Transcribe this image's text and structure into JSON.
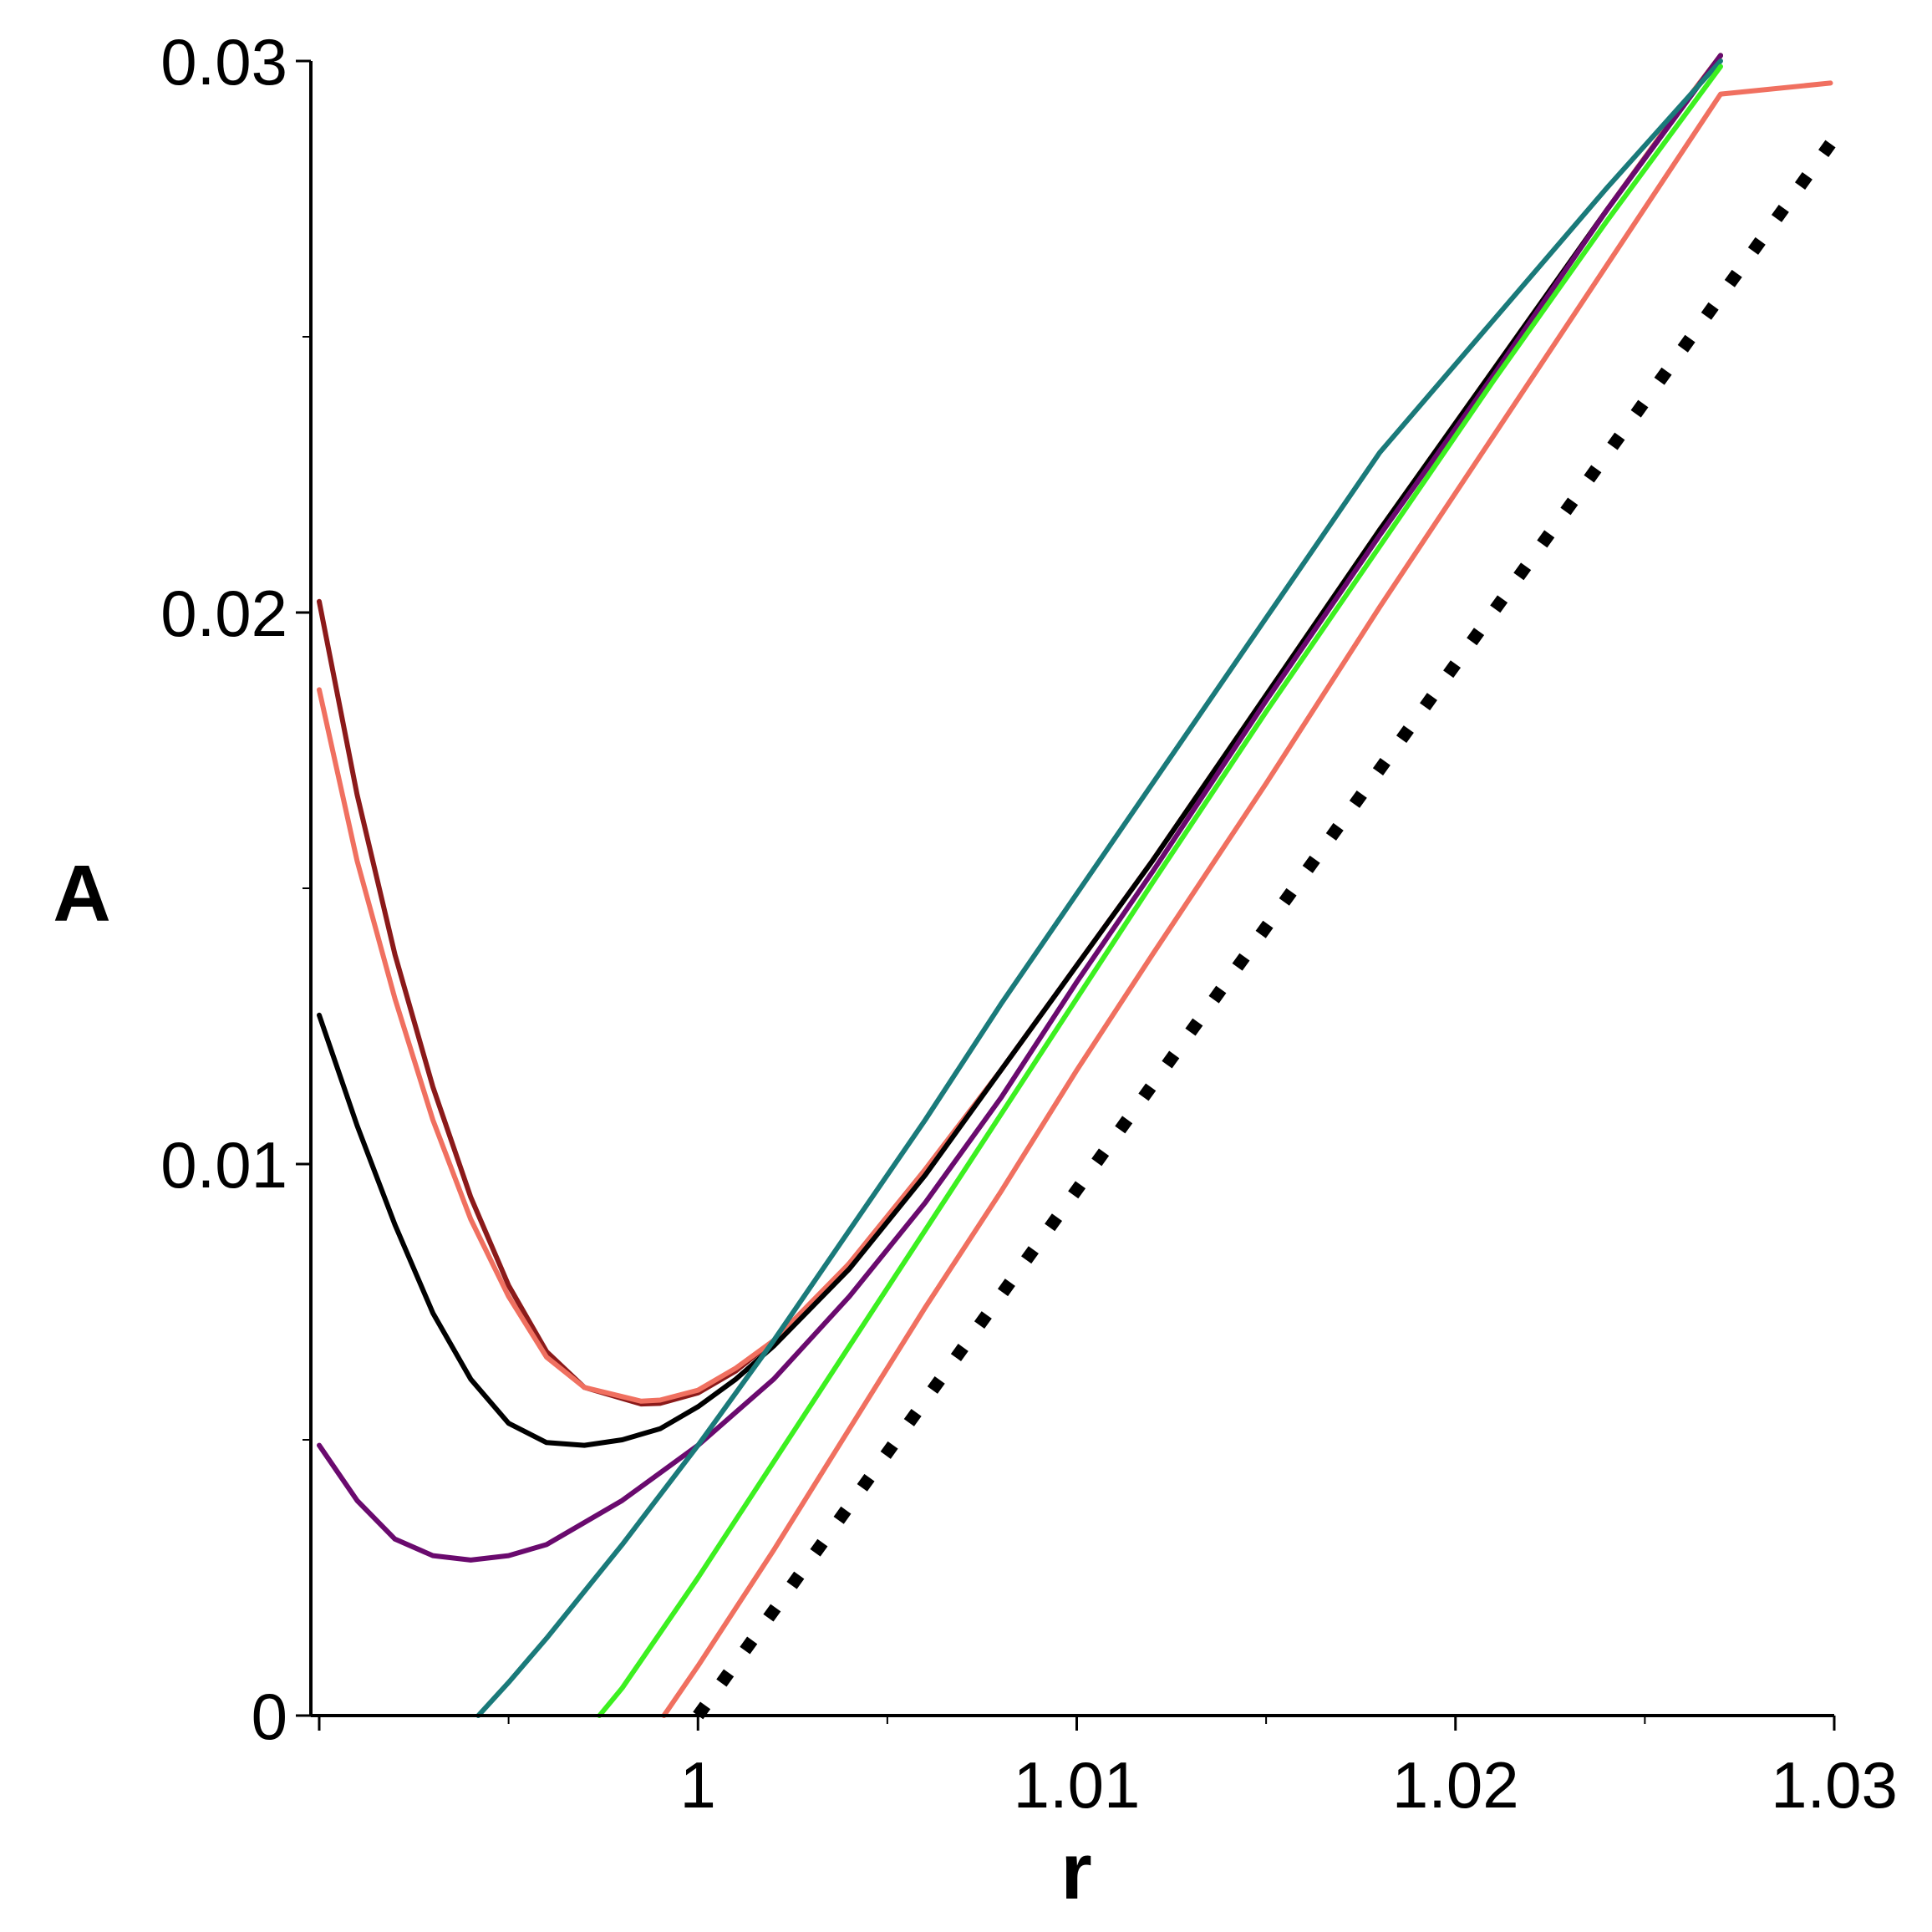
{
  "chart_data": {
    "type": "line",
    "xlabel": "r",
    "ylabel": "A",
    "xlim": [
      0.99,
      1.03
    ],
    "ylim": [
      0,
      0.03
    ],
    "x_ticks": [
      {
        "value": 1.0,
        "label": "1"
      },
      {
        "value": 1.01,
        "label": "1.01"
      },
      {
        "value": 1.02,
        "label": "1.02"
      },
      {
        "value": 1.03,
        "label": "1.03"
      }
    ],
    "y_ticks": [
      {
        "value": 0,
        "label": "0"
      },
      {
        "value": 0.01,
        "label": "0.01"
      },
      {
        "value": 0.02,
        "label": "0.02"
      },
      {
        "value": 0.03,
        "label": "0.03"
      }
    ],
    "x_minor_ticks": [
      0.995,
      1.005,
      1.015,
      1.025
    ],
    "y_minor_ticks": [
      0.005,
      0.015,
      0.025
    ],
    "grid": false,
    "legend": "none",
    "series": [
      {
        "color": "#8b1a1a",
        "points": [
          [
            0.99,
            0.0202
          ],
          [
            0.991,
            0.0167
          ],
          [
            0.992,
            0.0138
          ],
          [
            0.993,
            0.0114
          ],
          [
            0.994,
            0.0094
          ],
          [
            0.995,
            0.0078
          ],
          [
            0.996,
            0.0066
          ],
          [
            0.997,
            0.00595
          ],
          [
            0.9985,
            0.00565
          ],
          [
            0.999,
            0.00566
          ],
          [
            1.0,
            0.00585
          ],
          [
            1.001,
            0.00625
          ],
          [
            1.002,
            0.0068
          ],
          [
            1.003,
            0.00745
          ],
          [
            1.004,
            0.0082
          ],
          [
            1.006,
            0.0099
          ],
          [
            1.008,
            0.0117
          ],
          [
            1.01,
            0.0136
          ],
          [
            1.012,
            0.0155
          ],
          [
            1.015,
            0.0185
          ],
          [
            1.018,
            0.0215
          ],
          [
            1.021,
            0.0244
          ],
          [
            1.024,
            0.0273
          ],
          [
            1.026,
            0.0292
          ],
          [
            1.027,
            0.0301
          ]
        ]
      },
      {
        "color": "#f07060",
        "points": [
          [
            0.99,
            0.0186
          ],
          [
            0.991,
            0.0155
          ],
          [
            0.992,
            0.013
          ],
          [
            0.993,
            0.0108
          ],
          [
            0.994,
            0.009
          ],
          [
            0.995,
            0.0076
          ],
          [
            0.996,
            0.0065
          ],
          [
            0.997,
            0.00595
          ],
          [
            0.9985,
            0.0057
          ],
          [
            0.999,
            0.00572
          ],
          [
            1.0,
            0.0059
          ],
          [
            1.001,
            0.0063
          ],
          [
            1.002,
            0.0068
          ],
          [
            1.003,
            0.0075
          ],
          [
            1.004,
            0.0082
          ],
          [
            1.006,
            0.0099
          ],
          [
            1.008,
            0.0117
          ],
          [
            1.01,
            0.0136
          ],
          [
            1.012,
            0.0155
          ],
          [
            1.015,
            0.0185
          ],
          [
            1.018,
            0.0215
          ],
          [
            1.021,
            0.0244
          ],
          [
            1.024,
            0.0273
          ],
          [
            1.026,
            0.0292
          ],
          [
            1.027,
            0.0301
          ]
        ]
      },
      {
        "color": "#000000",
        "points": [
          [
            0.99,
            0.0127
          ],
          [
            0.991,
            0.0107
          ],
          [
            0.992,
            0.0089
          ],
          [
            0.993,
            0.0073
          ],
          [
            0.994,
            0.0061
          ],
          [
            0.995,
            0.0053
          ],
          [
            0.996,
            0.00495
          ],
          [
            0.997,
            0.0049
          ],
          [
            0.998,
            0.005
          ],
          [
            0.999,
            0.0052
          ],
          [
            1.0,
            0.0056
          ],
          [
            1.001,
            0.0061
          ],
          [
            1.002,
            0.0067
          ],
          [
            1.004,
            0.0081
          ],
          [
            1.006,
            0.0098
          ],
          [
            1.008,
            0.0117
          ],
          [
            1.01,
            0.0136
          ],
          [
            1.012,
            0.0155
          ],
          [
            1.015,
            0.0185
          ],
          [
            1.018,
            0.0215
          ],
          [
            1.021,
            0.0244
          ],
          [
            1.024,
            0.0273
          ],
          [
            1.027,
            0.0301
          ]
        ]
      },
      {
        "color": "#6a0a6e",
        "points": [
          [
            0.99,
            0.0049
          ],
          [
            0.991,
            0.0039
          ],
          [
            0.992,
            0.0032
          ],
          [
            0.993,
            0.0029
          ],
          [
            0.994,
            0.00282
          ],
          [
            0.995,
            0.0029
          ],
          [
            0.996,
            0.0031
          ],
          [
            0.997,
            0.0035
          ],
          [
            0.998,
            0.0039
          ],
          [
            1.0,
            0.0049
          ],
          [
            1.002,
            0.0061
          ],
          [
            1.004,
            0.0076
          ],
          [
            1.006,
            0.0093
          ],
          [
            1.008,
            0.0112
          ],
          [
            1.01,
            0.0133
          ],
          [
            1.012,
            0.0153
          ],
          [
            1.015,
            0.0184
          ],
          [
            1.018,
            0.0214
          ],
          [
            1.021,
            0.0243
          ],
          [
            1.024,
            0.0273
          ],
          [
            1.027,
            0.0301
          ]
        ]
      },
      {
        "color": "#1a7a7a",
        "points": [
          [
            0.9942,
            0.0
          ],
          [
            0.995,
            0.0006
          ],
          [
            0.996,
            0.0014
          ],
          [
            0.998,
            0.0031
          ],
          [
            1.0,
            0.0049
          ],
          [
            1.002,
            0.0068
          ],
          [
            1.004,
            0.0088
          ],
          [
            1.006,
            0.0108
          ],
          [
            1.008,
            0.0129
          ],
          [
            1.01,
            0.0149
          ],
          [
            1.012,
            0.0169
          ],
          [
            1.015,
            0.0199
          ],
          [
            1.018,
            0.0229
          ],
          [
            1.021,
            0.0253
          ],
          [
            1.024,
            0.0277
          ],
          [
            1.027,
            0.03
          ]
        ]
      },
      {
        "color": "#3cf020",
        "points": [
          [
            0.9974,
            0.0
          ],
          [
            0.998,
            0.0005
          ],
          [
            1.0,
            0.0025
          ],
          [
            1.002,
            0.0046
          ],
          [
            1.004,
            0.0067
          ],
          [
            1.006,
            0.0088
          ],
          [
            1.008,
            0.0109
          ],
          [
            1.01,
            0.013
          ],
          [
            1.012,
            0.0151
          ],
          [
            1.015,
            0.0182
          ],
          [
            1.018,
            0.0212
          ],
          [
            1.021,
            0.0242
          ],
          [
            1.024,
            0.0271
          ],
          [
            1.027,
            0.0299
          ]
        ]
      },
      {
        "color": "#f07060",
        "points": [
          [
            0.9991,
            0.0
          ],
          [
            1.0,
            0.0009
          ],
          [
            1.002,
            0.003
          ],
          [
            1.004,
            0.0052
          ],
          [
            1.006,
            0.0074
          ],
          [
            1.008,
            0.0095
          ],
          [
            1.01,
            0.0117
          ],
          [
            1.012,
            0.0138
          ],
          [
            1.015,
            0.0169
          ],
          [
            1.018,
            0.0201
          ],
          [
            1.021,
            0.0232
          ],
          [
            1.024,
            0.0263
          ],
          [
            1.027,
            0.0294
          ],
          [
            1.0299,
            0.0296
          ]
        ]
      },
      {
        "color": "#000000",
        "dotted": true,
        "points": [
          [
            1.0,
            0.0
          ],
          [
            1.0299,
            0.0285
          ]
        ]
      }
    ]
  }
}
